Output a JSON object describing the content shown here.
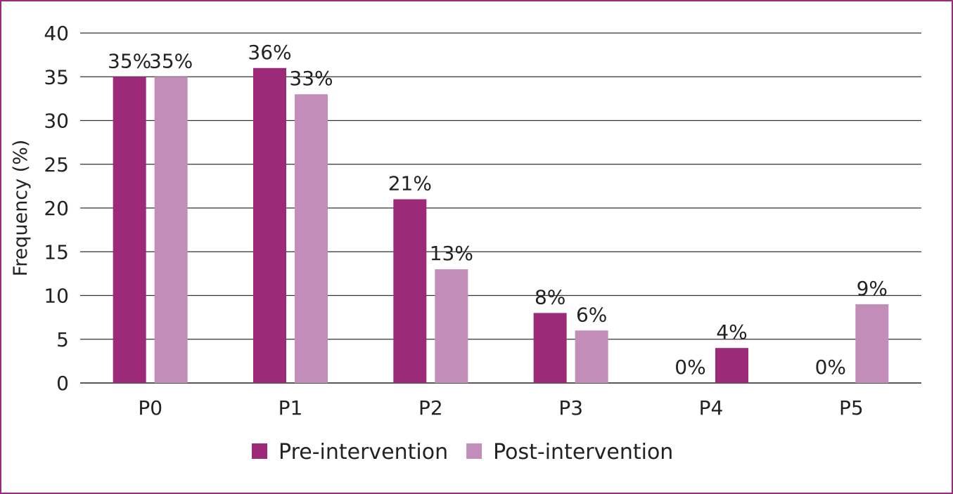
{
  "chart_data": {
    "type": "bar",
    "title": "",
    "xlabel": "",
    "ylabel": "Frequency (%)",
    "ylim": [
      0,
      40
    ],
    "yticks": [
      0,
      5,
      10,
      15,
      20,
      25,
      30,
      35,
      40
    ],
    "grid": true,
    "legend_position": "bottom",
    "categories": [
      "P0",
      "P1",
      "P2",
      "P3",
      "P4",
      "P5"
    ],
    "series": [
      {
        "name": "Pre-intervention",
        "color": "#9c2a78",
        "values": [
          35,
          36,
          21,
          8,
          0,
          0
        ],
        "labels": [
          "35%",
          "36%",
          "21%",
          "8%",
          "0%",
          "0%"
        ]
      },
      {
        "name": "Post-intervention",
        "color": "#c28db8",
        "values": [
          35,
          33,
          13,
          6,
          4,
          9
        ],
        "labels": [
          "35%",
          "33%",
          "13%",
          "6%",
          "4%",
          "9%"
        ],
        "point_colors": [
          "#c28db8",
          "#c28db8",
          "#c28db8",
          "#c28db8",
          "#9c2a78",
          "#c28db8"
        ]
      }
    ]
  }
}
